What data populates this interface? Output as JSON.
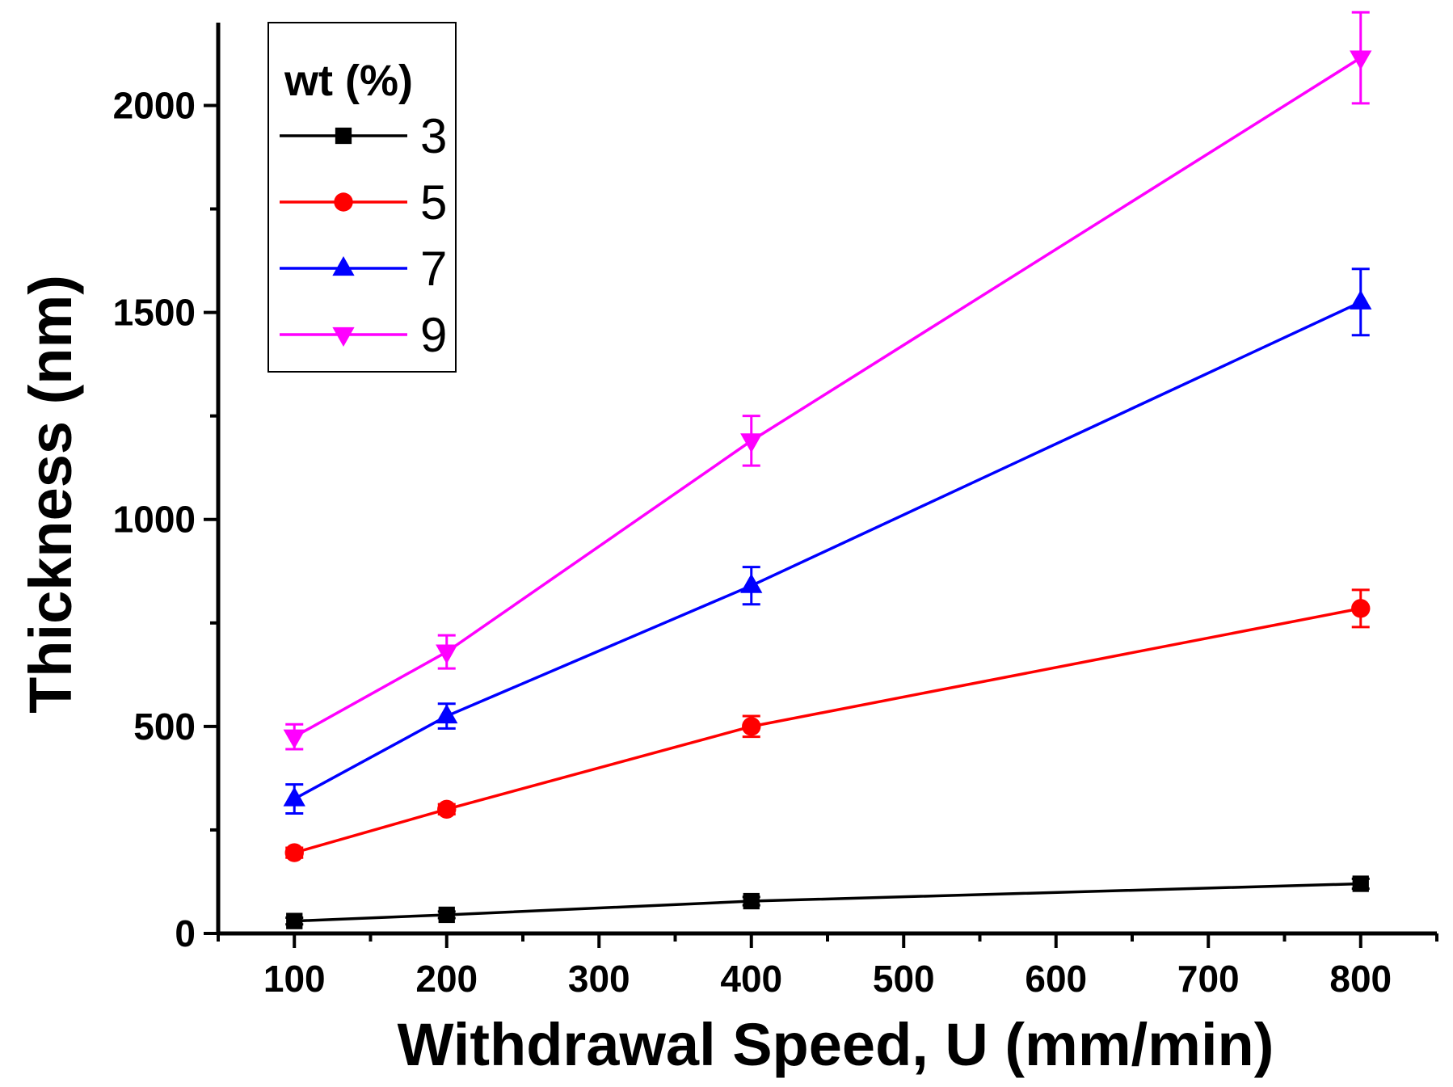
{
  "chart_data": {
    "type": "line",
    "title": "",
    "xlabel": "Withdrawal Speed, U (mm/min)",
    "ylabel": "Thickness (nm)",
    "xlim": [
      50,
      850
    ],
    "ylim": [
      0,
      2200
    ],
    "xticks": [
      100,
      200,
      300,
      400,
      500,
      600,
      700,
      800
    ],
    "yticks": [
      0,
      500,
      1000,
      1500,
      2000
    ],
    "legend_title": "wt (%)",
    "legend_position": "top-left",
    "x": [
      100,
      200,
      400,
      800
    ],
    "series": [
      {
        "name": "3",
        "color": "#000000",
        "marker": "square",
        "values": [
          30,
          45,
          78,
          120
        ],
        "errors": [
          8,
          8,
          10,
          12
        ]
      },
      {
        "name": "5",
        "color": "#ff0000",
        "marker": "circle",
        "values": [
          195,
          300,
          500,
          785
        ],
        "errors": [
          12,
          12,
          25,
          45
        ]
      },
      {
        "name": "7",
        "color": "#0000ff",
        "marker": "triangle-up",
        "values": [
          325,
          525,
          840,
          1525
        ],
        "errors": [
          35,
          30,
          45,
          80
        ]
      },
      {
        "name": "9",
        "color": "#ff00ff",
        "marker": "triangle-down",
        "values": [
          475,
          680,
          1190,
          2115
        ],
        "errors": [
          30,
          40,
          60,
          110
        ]
      }
    ]
  }
}
